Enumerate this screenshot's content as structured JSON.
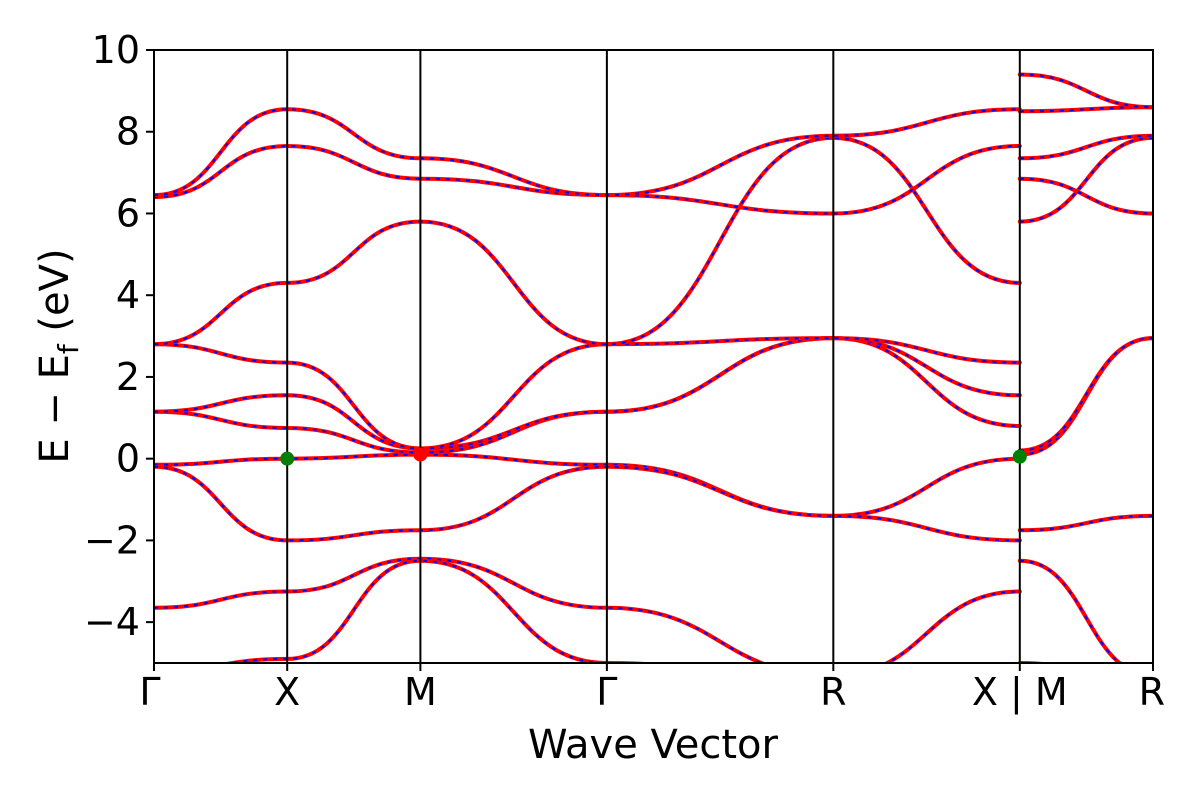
{
  "chart_data": {
    "type": "line",
    "title": "",
    "xlabel": "Wave Vector",
    "ylabel": "E − E_f (eV)",
    "ylabel_parts": {
      "main": "E  −  E",
      "sub": "f",
      "unit": " (eV)"
    },
    "ylim": [
      -5,
      10
    ],
    "yticks": [
      -4,
      -2,
      0,
      2,
      4,
      6,
      8,
      10
    ],
    "ytick_labels": [
      "−4",
      "−2",
      "0",
      "2",
      "4",
      "6",
      "8",
      "10"
    ],
    "grid": false,
    "kpath": {
      "positions": [
        0,
        1,
        2,
        3.4,
        5.1,
        6.5,
        7.5
      ],
      "labels": [
        "Γ",
        "X",
        "M",
        "Γ",
        "R",
        "X | M",
        "R"
      ],
      "segment_break_at": 6.5
    },
    "line_colors": {
      "band": "#ff0000",
      "overlay": "#0000ff",
      "frame": "#000000"
    },
    "series": [
      {
        "x": [
          0,
          1,
          2,
          3.4,
          5.1,
          6.5
        ],
        "y": [
          -0.15,
          0,
          0.1,
          -0.15,
          -1.4,
          0
        ]
      },
      {
        "x": [
          0,
          1,
          2,
          3.4,
          5.1,
          6.5
        ],
        "y": [
          1.15,
          0.75,
          0.15,
          1.15,
          2.95,
          0.8
        ]
      },
      {
        "x": [
          0,
          1,
          2,
          3.4,
          5.1,
          6.5
        ],
        "y": [
          1.15,
          1.55,
          0.25,
          1.15,
          2.95,
          1.55
        ]
      },
      {
        "x": [
          0,
          1,
          2,
          3.4,
          5.1,
          6.5
        ],
        "y": [
          2.8,
          2.35,
          0.25,
          2.8,
          2.95,
          2.35
        ]
      },
      {
        "x": [
          0,
          1,
          2,
          3.4,
          5.1,
          6.5
        ],
        "y": [
          2.8,
          4.3,
          5.8,
          2.8,
          7.85,
          4.3
        ]
      },
      {
        "x": [
          0,
          1,
          2,
          3.4,
          5.1,
          6.5
        ],
        "y": [
          6.4,
          7.65,
          6.85,
          6.45,
          6.0,
          7.65
        ]
      },
      {
        "x": [
          0,
          1,
          2,
          3.4,
          5.1,
          6.5
        ],
        "y": [
          6.45,
          8.55,
          7.35,
          6.45,
          7.9,
          8.55
        ]
      },
      {
        "x": [
          0,
          1,
          2,
          3.4,
          5.1,
          6.5
        ],
        "y": [
          -0.2,
          -2.0,
          -1.75,
          -0.2,
          -1.4,
          -2.0
        ]
      },
      {
        "x": [
          0,
          1,
          2,
          3.4,
          5.1,
          6.5
        ],
        "y": [
          -3.65,
          -3.25,
          -2.45,
          -3.65,
          -5.3,
          -3.25
        ]
      },
      {
        "x": [
          0,
          1,
          2,
          3.4,
          5.1,
          6.5
        ],
        "y": [
          -5.2,
          -4.9,
          -2.5,
          -5.0,
          -5.5,
          -5.2
        ]
      },
      {
        "x": [
          6.5,
          7.5
        ],
        "y": [
          0.1,
          2.95
        ]
      },
      {
        "x": [
          6.5,
          7.5
        ],
        "y": [
          0.2,
          2.95
        ]
      },
      {
        "x": [
          6.5,
          7.5
        ],
        "y": [
          5.8,
          7.85
        ]
      },
      {
        "x": [
          6.5,
          7.5
        ],
        "y": [
          6.85,
          6.0
        ]
      },
      {
        "x": [
          6.5,
          7.5
        ],
        "y": [
          7.35,
          7.9
        ]
      },
      {
        "x": [
          6.5,
          7.5
        ],
        "y": [
          8.5,
          8.6
        ]
      },
      {
        "x": [
          6.5,
          7.5
        ],
        "y": [
          9.4,
          8.6
        ]
      },
      {
        "x": [
          6.5,
          7.5
        ],
        "y": [
          -1.75,
          -1.4
        ]
      },
      {
        "x": [
          6.5,
          7.5
        ],
        "y": [
          -2.5,
          -5.3
        ]
      },
      {
        "x": [
          6.5,
          7.5
        ],
        "y": [
          -5.0,
          -5.5
        ]
      }
    ],
    "markers": [
      {
        "x": 1,
        "y": 0.0,
        "color": "#008000"
      },
      {
        "x": 2,
        "y": 0.1,
        "color": "#ff0000"
      },
      {
        "x": 6.5,
        "y": 0.05,
        "color": "#008000"
      }
    ]
  }
}
